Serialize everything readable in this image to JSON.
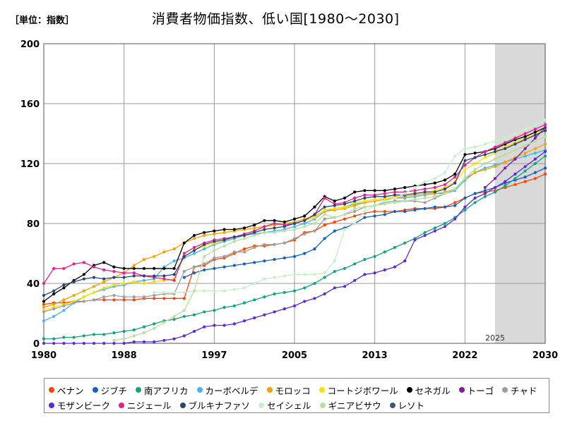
{
  "unit_label": "［単位：指数］",
  "title": "消費者物価指数、低い国[1980～2030]",
  "forecast_label": "2025",
  "chart_data": {
    "type": "line",
    "title": "消費者物価指数、低い国[1980～2030]",
    "xlabel": "",
    "ylabel": "",
    "xlim": [
      1980,
      2030
    ],
    "ylim": [
      0,
      200
    ],
    "x_ticks": [
      "1980",
      "1988",
      "1997",
      "2005",
      "2013",
      "2022",
      "2030"
    ],
    "y_ticks": [
      "0",
      "40",
      "80",
      "120",
      "160",
      "200"
    ],
    "grid": true,
    "legend_position": "bottom",
    "forecast_region": [
      2025,
      2030
    ],
    "x": [
      1980,
      1981,
      1982,
      1983,
      1984,
      1985,
      1986,
      1987,
      1988,
      1989,
      1990,
      1991,
      1992,
      1993,
      1994,
      1995,
      1996,
      1997,
      1998,
      1999,
      2000,
      2001,
      2002,
      2003,
      2004,
      2005,
      2006,
      2007,
      2008,
      2009,
      2010,
      2011,
      2012,
      2013,
      2014,
      2015,
      2016,
      2017,
      2018,
      2019,
      2020,
      2021,
      2022,
      2023,
      2024,
      2025,
      2026,
      2027,
      2028,
      2029,
      2030
    ],
    "series": [
      {
        "name": "ベナン",
        "color": "#ff4500",
        "values": [
          26,
          27,
          27,
          28,
          28,
          29,
          29,
          29,
          29,
          29,
          30,
          30,
          30,
          30,
          30,
          51,
          52,
          56,
          57,
          60,
          63,
          65,
          65,
          66,
          67,
          69,
          74,
          75,
          79,
          81,
          83,
          85,
          87,
          88,
          88,
          88,
          89,
          90,
          90,
          90,
          91,
          94,
          97,
          100,
          101,
          102,
          104,
          106,
          108,
          110,
          113
        ]
      },
      {
        "name": "ジブチ",
        "color": "#1560bd",
        "values": [
          null,
          null,
          null,
          null,
          null,
          null,
          null,
          null,
          null,
          null,
          null,
          null,
          null,
          null,
          44,
          47,
          49,
          50,
          51,
          52,
          53,
          54,
          55,
          56,
          57,
          58,
          60,
          63,
          70,
          75,
          77,
          80,
          84,
          85,
          86,
          88,
          88,
          89,
          90,
          91,
          91,
          92,
          97,
          100,
          102,
          104,
          107,
          109,
          111,
          114,
          117
        ]
      },
      {
        "name": "南アフリカ",
        "color": "#16a37b",
        "values": [
          3,
          3,
          4,
          4,
          5,
          6,
          6,
          7,
          8,
          9,
          11,
          13,
          15,
          16,
          18,
          19,
          21,
          22,
          24,
          25,
          27,
          29,
          31,
          33,
          34,
          35,
          37,
          40,
          44,
          48,
          50,
          53,
          56,
          58,
          61,
          64,
          67,
          70,
          74,
          77,
          80,
          84,
          89,
          94,
          98,
          101,
          105,
          110,
          115,
          120,
          125
        ]
      },
      {
        "name": "カーボベルデ",
        "color": "#4ab3f4",
        "values": [
          15,
          18,
          22,
          27,
          31,
          34,
          36,
          38,
          39,
          41,
          42,
          43,
          51,
          55,
          57,
          60,
          63,
          66,
          68,
          70,
          72,
          73,
          74,
          75,
          76,
          78,
          80,
          83,
          88,
          90,
          91,
          93,
          94,
          95,
          96,
          97,
          97,
          98,
          99,
          100,
          100,
          102,
          109,
          114,
          117,
          119,
          121,
          123,
          125,
          127,
          129
        ]
      },
      {
        "name": "モロッコ",
        "color": "#f4a300",
        "values": [
          24,
          26,
          29,
          32,
          35,
          38,
          41,
          44,
          47,
          52,
          56,
          58,
          61,
          63,
          67,
          70,
          72,
          73,
          74,
          75,
          76,
          77,
          78,
          79,
          80,
          81,
          83,
          85,
          88,
          89,
          90,
          92,
          94,
          95,
          96,
          97,
          98,
          99,
          100,
          100,
          101,
          103,
          110,
          114,
          116,
          118,
          121,
          124,
          127,
          130,
          133
        ]
      },
      {
        "name": "コートジボワール",
        "color": "#ffe000",
        "values": [
          22,
          24,
          26,
          28,
          31,
          34,
          37,
          39,
          40,
          41,
          40,
          41,
          42,
          43,
          58,
          62,
          65,
          67,
          69,
          71,
          72,
          74,
          76,
          77,
          78,
          80,
          82,
          84,
          89,
          90,
          91,
          94,
          95,
          96,
          97,
          98,
          99,
          100,
          101,
          102,
          104,
          108,
          116,
          120,
          124,
          127,
          131,
          134,
          137,
          140,
          143
        ]
      },
      {
        "name": "セネガル",
        "color": "#000000",
        "values": [
          28,
          33,
          37,
          42,
          46,
          52,
          54,
          51,
          50,
          50,
          50,
          50,
          50,
          50,
          67,
          72,
          74,
          75,
          76,
          76,
          77,
          79,
          82,
          82,
          81,
          83,
          85,
          91,
          98,
          95,
          97,
          101,
          102,
          102,
          102,
          103,
          104,
          105,
          106,
          107,
          109,
          113,
          126,
          127,
          128,
          130,
          133,
          136,
          138,
          141,
          144
        ]
      },
      {
        "name": "トーゴ",
        "color": "#7b1fa2",
        "values": [
          null,
          null,
          null,
          null,
          null,
          null,
          null,
          null,
          null,
          null,
          null,
          null,
          null,
          null,
          null,
          null,
          null,
          null,
          null,
          null,
          null,
          null,
          null,
          null,
          null,
          null,
          null,
          null,
          null,
          null,
          null,
          null,
          null,
          null,
          null,
          null,
          null,
          null,
          null,
          null,
          null,
          null,
          null,
          null,
          104,
          110,
          117,
          123,
          130,
          137,
          144
        ]
      },
      {
        "name": "チャド",
        "color": "#9e9e9e",
        "values": [
          21,
          23,
          25,
          27,
          28,
          29,
          31,
          32,
          31,
          31,
          31,
          32,
          33,
          33,
          48,
          51,
          53,
          57,
          58,
          61,
          61,
          64,
          66,
          66,
          67,
          70,
          73,
          75,
          83,
          84,
          86,
          88,
          91,
          92,
          94,
          95,
          95,
          95,
          94,
          97,
          100,
          103,
          110,
          116,
          120,
          123,
          126,
          129,
          132,
          135,
          138
        ]
      },
      {
        "name": "モザンビーク",
        "color": "#5a2bd8",
        "values": [
          0,
          0,
          0,
          0,
          0,
          0,
          0,
          0,
          0,
          1,
          1,
          1,
          2,
          3,
          5,
          8,
          11,
          12,
          12,
          13,
          15,
          17,
          19,
          21,
          23,
          25,
          28,
          30,
          33,
          37,
          38,
          42,
          46,
          47,
          49,
          51,
          55,
          69,
          72,
          75,
          78,
          83,
          91,
          97,
          100,
          104,
          108,
          113,
          118,
          123,
          128
        ]
      },
      {
        "name": "ニジェール",
        "color": "#e91e8c",
        "values": [
          40,
          50,
          50,
          53,
          54,
          51,
          49,
          48,
          47,
          47,
          45,
          44,
          43,
          42,
          60,
          64,
          67,
          69,
          70,
          71,
          73,
          75,
          78,
          80,
          79,
          80,
          82,
          86,
          97,
          93,
          94,
          97,
          99,
          99,
          100,
          101,
          101,
          102,
          103,
          104,
          106,
          111,
          119,
          124,
          128,
          131,
          134,
          137,
          140,
          143,
          146
        ]
      },
      {
        "name": "ブルキナファソ",
        "color": "#28466e",
        "values": [
          32,
          35,
          39,
          41,
          43,
          44,
          43,
          44,
          44,
          45,
          45,
          45,
          45,
          46,
          58,
          62,
          66,
          68,
          69,
          71,
          72,
          74,
          76,
          77,
          78,
          80,
          82,
          86,
          91,
          92,
          93,
          95,
          97,
          98,
          98,
          99,
          99,
          100,
          101,
          101,
          103,
          107,
          122,
          124,
          126,
          128,
          130,
          133,
          136,
          139,
          142
        ]
      },
      {
        "name": "セイシェル",
        "color": "#c8f0c8",
        "values": [
          null,
          null,
          null,
          null,
          null,
          null,
          null,
          null,
          null,
          null,
          null,
          34,
          34,
          34,
          34,
          35,
          35,
          35,
          35,
          36,
          37,
          40,
          43,
          44,
          45,
          46,
          46,
          46,
          47,
          55,
          76,
          80,
          88,
          92,
          95,
          97,
          100,
          104,
          108,
          110,
          114,
          125,
          130,
          131,
          133,
          135,
          137,
          140,
          143,
          146,
          149
        ]
      },
      {
        "name": "ギニアビサウ",
        "color": "#b8e0a0",
        "values": [
          null,
          null,
          null,
          null,
          null,
          null,
          null,
          2,
          3,
          5,
          7,
          10,
          14,
          18,
          22,
          35,
          58,
          62,
          65,
          68,
          70,
          72,
          74,
          74,
          75,
          76,
          78,
          80,
          86,
          84,
          86,
          90,
          91,
          92,
          93,
          94,
          95,
          96,
          97,
          98,
          100,
          103,
          110,
          116,
          120,
          123,
          126,
          129,
          132,
          135,
          138
        ]
      },
      {
        "name": "レソト",
        "color": "#3c5a78",
        "values": [
          null,
          null,
          null,
          null,
          null,
          null,
          null,
          null,
          null,
          null,
          null,
          null,
          null,
          null,
          null,
          null,
          null,
          null,
          null,
          null,
          null,
          null,
          null,
          null,
          null,
          null,
          null,
          null,
          null,
          null,
          null,
          null,
          null,
          null,
          null,
          null,
          null,
          null,
          null,
          null,
          null,
          null,
          null,
          null,
          null,
          null,
          null,
          null,
          null,
          null,
          null
        ]
      }
    ]
  }
}
